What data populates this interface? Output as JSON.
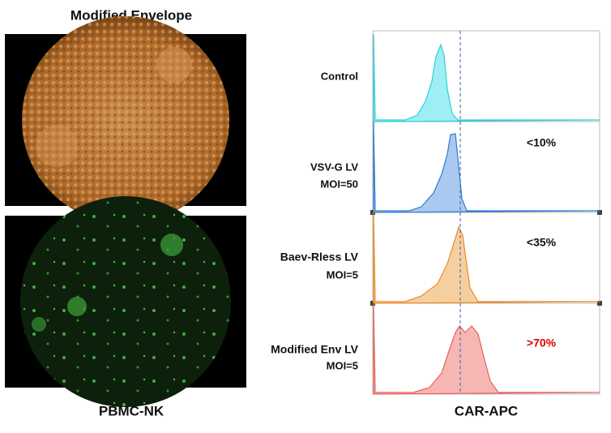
{
  "left": {
    "title": "Modified Envelope",
    "caption": "PBMC-NK"
  },
  "right": {
    "axis_label": "CAR-APC",
    "rows": [
      {
        "label": "Control"
      },
      {
        "label": "VSV-G LV",
        "moi": "MOI=50",
        "percent": "<10%"
      },
      {
        "label": "Baev-Rless LV",
        "moi": "MOI=5",
        "percent": "<35%"
      },
      {
        "label": "Modified Env LV",
        "moi": "MOI=5",
        "percent": ">70%"
      }
    ]
  }
}
